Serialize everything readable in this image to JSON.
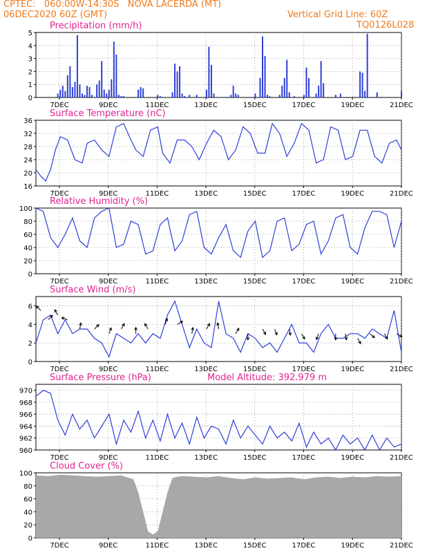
{
  "header": {
    "line1": "CPTEC:   060:00W-14:30S   NOVA LACERDA (MT)",
    "line2": "06DEC2020 60Z (GMT)",
    "grid_note": "Vertical Grid Line: 60Z",
    "code": "TQ0126L028"
  },
  "colors": {
    "header": "#f07a1a",
    "title": "#e0238f",
    "line": "#2c3fd8",
    "cloud": "#a8a8a8"
  },
  "chart_data": [
    {
      "id": "precip",
      "type": "bar",
      "title": "Precipitation (mm/h)",
      "ylim": [
        0,
        5
      ],
      "yticks": [
        0,
        1,
        2,
        3,
        4,
        5
      ],
      "xticks": [
        "7DEC",
        "9DEC",
        "11DEC",
        "13DEC",
        "15DEC",
        "17DEC",
        "19DEC",
        "21DEC"
      ],
      "x_unit": "days_from_6DEC12Z",
      "xlim": [
        0,
        15
      ],
      "grid": true,
      "x": [
        0.9,
        1.0,
        1.1,
        1.2,
        1.3,
        1.4,
        1.5,
        1.6,
        1.7,
        1.8,
        1.9,
        2.0,
        2.1,
        2.2,
        2.3,
        2.5,
        2.6,
        2.7,
        2.8,
        2.9,
        3.0,
        3.1,
        3.2,
        3.3,
        3.4,
        3.5,
        3.6,
        4.2,
        4.3,
        4.4,
        5.0,
        5.1,
        5.6,
        5.7,
        5.8,
        5.9,
        6.0,
        6.1,
        6.3,
        6.6,
        7.0,
        7.1,
        7.2,
        7.3,
        8.0,
        8.1,
        8.2,
        8.3,
        9.0,
        9.2,
        9.3,
        9.4,
        9.5,
        9.6,
        10.0,
        10.1,
        10.2,
        10.3,
        10.4,
        10.6,
        11.0,
        11.1,
        11.2,
        11.5,
        11.6,
        11.7,
        11.8,
        12.3,
        12.5,
        13.3,
        13.4,
        13.5,
        13.6,
        14.0,
        15.0
      ],
      "values": [
        0.3,
        0.6,
        0.9,
        0.5,
        1.7,
        2.4,
        0.8,
        1.2,
        4.8,
        1.0,
        0.3,
        0.2,
        0.9,
        0.8,
        0.2,
        1.0,
        1.3,
        2.8,
        0.6,
        0.3,
        0.6,
        1.4,
        4.3,
        3.3,
        0.2,
        0.1,
        0.1,
        0.6,
        0.8,
        0.7,
        0.2,
        0.1,
        0.4,
        2.6,
        2.0,
        2.4,
        0.3,
        0.1,
        0.2,
        0.2,
        0.6,
        3.9,
        2.5,
        0.3,
        0.2,
        0.9,
        0.3,
        0.2,
        0.3,
        1.5,
        4.7,
        3.2,
        0.2,
        0.1,
        0.2,
        0.9,
        1.5,
        2.9,
        0.4,
        0.1,
        0.2,
        2.3,
        1.5,
        0.3,
        0.9,
        2.8,
        1.1,
        0.2,
        0.3,
        2.0,
        1.9,
        0.5,
        4.9,
        0.4,
        0.5
      ]
    },
    {
      "id": "temp",
      "type": "line",
      "title": "Surface Temperature (nC)",
      "ylim": [
        16,
        36
      ],
      "yticks": [
        16,
        20,
        24,
        28,
        32,
        36
      ],
      "xticks": [
        "7DEC",
        "9DEC",
        "11DEC",
        "13DEC",
        "15DEC",
        "17DEC",
        "19DEC",
        "21DEC"
      ],
      "xlim": [
        0,
        15
      ],
      "grid": true,
      "x": [
        0.0,
        0.2,
        0.4,
        0.6,
        0.8,
        1.0,
        1.3,
        1.6,
        1.9,
        2.1,
        2.4,
        2.7,
        3.0,
        3.3,
        3.6,
        3.9,
        4.1,
        4.4,
        4.7,
        5.0,
        5.2,
        5.5,
        5.8,
        6.1,
        6.4,
        6.7,
        7.0,
        7.3,
        7.6,
        7.9,
        8.2,
        8.5,
        8.8,
        9.1,
        9.4,
        9.7,
        10.0,
        10.3,
        10.6,
        10.9,
        11.2,
        11.5,
        11.8,
        12.1,
        12.4,
        12.7,
        13.0,
        13.3,
        13.6,
        13.9,
        14.2,
        14.5,
        14.8,
        15.0
      ],
      "values": [
        21,
        19,
        17.5,
        21,
        27,
        31,
        30,
        24,
        23,
        29,
        30,
        27,
        25,
        34,
        35,
        30,
        27,
        25,
        33,
        34,
        26,
        23,
        30,
        30,
        28,
        24,
        29,
        33,
        31,
        24,
        27,
        34,
        32,
        26,
        26,
        35,
        32,
        25,
        29,
        35,
        33,
        23,
        24,
        34,
        33,
        24,
        25,
        33,
        33,
        25,
        23,
        29,
        30,
        27
      ]
    },
    {
      "id": "rh",
      "type": "line",
      "title": "Relative Humidity (%)",
      "ylim": [
        0,
        100
      ],
      "yticks": [
        0,
        20,
        40,
        60,
        80,
        100
      ],
      "xticks": [
        "7DEC",
        "9DEC",
        "11DEC",
        "13DEC",
        "15DEC",
        "17DEC",
        "19DEC",
        "21DEC"
      ],
      "xlim": [
        0,
        15
      ],
      "grid": true,
      "x": [
        0.0,
        0.3,
        0.6,
        0.9,
        1.2,
        1.5,
        1.8,
        2.1,
        2.4,
        2.7,
        3.0,
        3.3,
        3.6,
        3.9,
        4.2,
        4.5,
        4.8,
        5.1,
        5.4,
        5.7,
        6.0,
        6.3,
        6.6,
        6.9,
        7.2,
        7.5,
        7.8,
        8.1,
        8.4,
        8.7,
        9.0,
        9.3,
        9.6,
        9.9,
        10.2,
        10.5,
        10.8,
        11.1,
        11.4,
        11.7,
        12.0,
        12.3,
        12.6,
        12.9,
        13.2,
        13.5,
        13.8,
        14.1,
        14.4,
        14.7,
        15.0
      ],
      "values": [
        100,
        95,
        55,
        40,
        60,
        85,
        50,
        40,
        85,
        95,
        100,
        40,
        45,
        80,
        75,
        30,
        35,
        75,
        85,
        35,
        50,
        90,
        95,
        40,
        30,
        55,
        75,
        35,
        25,
        65,
        80,
        25,
        35,
        80,
        85,
        35,
        45,
        75,
        80,
        30,
        50,
        85,
        90,
        40,
        30,
        70,
        95,
        95,
        90,
        40,
        80
      ]
    },
    {
      "id": "wind",
      "type": "line",
      "title": "Surface Wind (m/s)",
      "ylim": [
        0,
        7
      ],
      "yticks": [
        0,
        2,
        4,
        6
      ],
      "xticks": [
        "7DEC",
        "9DEC",
        "11DEC",
        "13DEC",
        "15DEC",
        "17DEC",
        "19DEC",
        "21DEC"
      ],
      "xlim": [
        0,
        15
      ],
      "grid": true,
      "x": [
        0.0,
        0.3,
        0.6,
        0.9,
        1.2,
        1.5,
        1.8,
        2.1,
        2.4,
        2.7,
        3.0,
        3.3,
        3.6,
        3.9,
        4.2,
        4.5,
        4.8,
        5.1,
        5.4,
        5.7,
        6.0,
        6.3,
        6.6,
        6.9,
        7.2,
        7.5,
        7.8,
        8.1,
        8.4,
        8.7,
        9.0,
        9.3,
        9.6,
        9.9,
        10.2,
        10.5,
        10.8,
        11.1,
        11.4,
        11.7,
        12.0,
        12.3,
        12.6,
        12.9,
        13.2,
        13.5,
        13.8,
        14.1,
        14.4,
        14.7,
        15.0
      ],
      "values": [
        2,
        4.5,
        5,
        3,
        4.5,
        3,
        3.5,
        3.5,
        2.5,
        2,
        0.5,
        3,
        2.5,
        2,
        3,
        2,
        3,
        2.5,
        5,
        6.5,
        4,
        1.5,
        3.5,
        2,
        1.5,
        6.5,
        3,
        2.5,
        1,
        3,
        2.5,
        1.5,
        2,
        1,
        2.5,
        4,
        2,
        2,
        1,
        3,
        4,
        2.5,
        2.5,
        3,
        3,
        2.5,
        3.5,
        3,
        2.5,
        5.5,
        1
      ]
    },
    {
      "id": "pressure",
      "type": "line",
      "title": "Surface Pressure (hPa)",
      "annotation": "Model Altitude: 392.979 m",
      "ylim": [
        960,
        971
      ],
      "yticks": [
        960,
        962,
        964,
        966,
        968,
        970
      ],
      "xticks": [
        "7DEC",
        "9DEC",
        "11DEC",
        "13DEC",
        "15DEC",
        "17DEC",
        "19DEC",
        "21DEC"
      ],
      "xlim": [
        0,
        15
      ],
      "grid": true,
      "x": [
        0.0,
        0.3,
        0.6,
        0.9,
        1.2,
        1.5,
        1.8,
        2.1,
        2.4,
        2.7,
        3.0,
        3.3,
        3.6,
        3.9,
        4.2,
        4.5,
        4.8,
        5.1,
        5.4,
        5.7,
        6.0,
        6.3,
        6.6,
        6.9,
        7.2,
        7.5,
        7.8,
        8.1,
        8.4,
        8.7,
        9.0,
        9.3,
        9.6,
        9.9,
        10.2,
        10.5,
        10.8,
        11.1,
        11.4,
        11.7,
        12.0,
        12.3,
        12.6,
        12.9,
        13.2,
        13.5,
        13.8,
        14.1,
        14.4,
        14.7,
        15.0
      ],
      "values": [
        969,
        970,
        969.5,
        965,
        962.5,
        966,
        963.5,
        965,
        962,
        964,
        966,
        961,
        965,
        963,
        966.5,
        962,
        965,
        961.5,
        966,
        962,
        964.5,
        961,
        965.5,
        962,
        964,
        963.5,
        961,
        965,
        962,
        964,
        962.5,
        961,
        964,
        962,
        963,
        961.5,
        964.5,
        960.5,
        963,
        961,
        962,
        960,
        962.5,
        961,
        962,
        960,
        962.5,
        960,
        962,
        960.5,
        961
      ]
    },
    {
      "id": "cloud",
      "type": "area",
      "title": "Cloud Cover (%)",
      "ylim": [
        0,
        100
      ],
      "yticks": [
        0,
        20,
        40,
        60,
        80,
        100
      ],
      "xticks": [
        "7DEC",
        "9DEC",
        "11DEC",
        "13DEC",
        "15DEC",
        "17DEC",
        "19DEC",
        "21DEC"
      ],
      "xlim": [
        0,
        15
      ],
      "grid": true,
      "x": [
        0.0,
        0.5,
        1.0,
        1.5,
        2.0,
        2.5,
        3.0,
        3.5,
        4.0,
        4.2,
        4.4,
        4.6,
        4.8,
        5.0,
        5.2,
        5.4,
        5.6,
        5.8,
        6.0,
        6.5,
        7.0,
        7.5,
        8.0,
        8.5,
        9.0,
        9.5,
        10.0,
        10.5,
        11.0,
        11.5,
        12.0,
        12.5,
        13.0,
        13.5,
        14.0,
        14.5,
        15.0
      ],
      "values": [
        96,
        95,
        97,
        96,
        95,
        94,
        95,
        96,
        90,
        70,
        40,
        10,
        5,
        10,
        40,
        70,
        92,
        94,
        95,
        94,
        93,
        95,
        92,
        90,
        93,
        91,
        92,
        93,
        90,
        93,
        94,
        92,
        94,
        93,
        95,
        94,
        95
      ]
    }
  ],
  "wind_vectors": {
    "x": [
      0.2,
      0.5,
      0.9,
      1.3,
      1.8,
      2.4,
      3.0,
      3.5,
      4.1,
      4.6,
      5.3,
      5.8,
      6.4,
      7.0,
      7.5,
      8.2,
      8.7,
      9.3,
      9.8,
      10.4,
      10.9,
      11.6,
      12.3,
      12.7,
      13.2,
      13.7,
      14.3,
      14.8
    ],
    "speed": [
      5.5,
      4.5,
      5,
      4.5,
      3.5,
      3.5,
      3,
      3.5,
      3,
      3.5,
      4,
      4,
      3,
      3.5,
      3.5,
      3,
      3,
      3.5,
      3.5,
      3.5,
      3,
      3,
      3,
      3,
      2.5,
      3,
      3,
      3
    ],
    "dir_deg": [
      135,
      45,
      120,
      160,
      80,
      45,
      70,
      60,
      90,
      120,
      70,
      30,
      80,
      60,
      100,
      60,
      270,
      300,
      290,
      280,
      300,
      250,
      270,
      280,
      300,
      320,
      300,
      330
    ]
  }
}
